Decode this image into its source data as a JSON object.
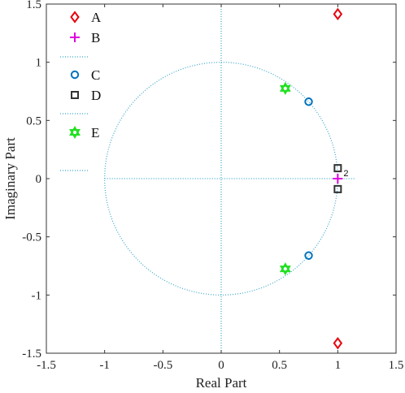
{
  "chart_data": {
    "type": "scatter",
    "xlabel": "Real Part",
    "ylabel": "Imaginary Part",
    "xlim": [
      -1.5,
      1.5
    ],
    "ylim": [
      -1.5,
      1.5
    ],
    "x_ticks": [
      "-1.5",
      "-1",
      "-0.5",
      "0",
      "0.5",
      "1",
      "1.5"
    ],
    "y_ticks": [
      "1.5",
      "1",
      "0.5",
      "0",
      "-0.5",
      "-1",
      "-1.5"
    ],
    "grid": false,
    "legend_position": "top-left",
    "unit_circle": true,
    "series": [
      {
        "name": "A",
        "marker": "diamond",
        "color": "#e8000b",
        "points": [
          [
            1.0,
            1.414
          ],
          [
            1.0,
            -1.414
          ]
        ]
      },
      {
        "name": "B",
        "marker": "plus",
        "color": "#e000e0",
        "points": [
          [
            1.0,
            0.0
          ]
        ]
      },
      {
        "name": "C",
        "marker": "circle",
        "color": "#0072bd",
        "points": [
          [
            0.75,
            0.661
          ],
          [
            0.75,
            -0.661
          ]
        ]
      },
      {
        "name": "D",
        "marker": "square",
        "color": "#333333",
        "points": [
          [
            1.0,
            0.09
          ],
          [
            1.0,
            -0.09
          ]
        ]
      },
      {
        "name": "E",
        "marker": "hexagram",
        "color": "#22e022",
        "points": [
          [
            0.55,
            0.775
          ],
          [
            0.55,
            -0.775
          ]
        ]
      }
    ],
    "annotations": [
      {
        "text": "2",
        "x": 1.0,
        "y": 0.0
      }
    ],
    "colors": {
      "axis": "#333333",
      "reference_lines": "#3ba7c9"
    }
  }
}
